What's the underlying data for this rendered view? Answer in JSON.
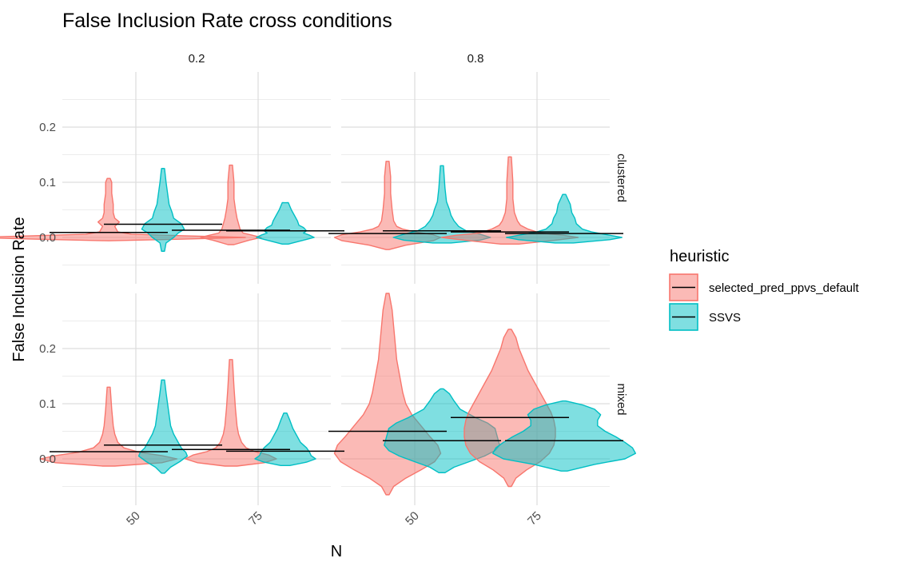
{
  "chart_data": {
    "type": "violin",
    "title": "False Inclusion Rate cross conditions",
    "xlabel": "N",
    "ylabel": "False Inclusion Rate",
    "x_categories": [
      "50",
      "75"
    ],
    "y_ticks": [
      "0.0",
      "0.1",
      "0.2"
    ],
    "ylim": [
      -0.07,
      0.31
    ],
    "grid": true,
    "legend": {
      "title": "heuristic",
      "position": "right",
      "entries": [
        {
          "label": "selected_pred_ppvs_default",
          "fill": "#F8766D"
        },
        {
          "label": "SSVS",
          "fill": "#00BFC4"
        }
      ]
    },
    "col_facets": [
      "0.2",
      "0.8"
    ],
    "row_facets": [
      "clustered",
      "mixed"
    ],
    "series": [
      {
        "name": "selected_pred_ppvs_default",
        "color": "#F8766D"
      },
      {
        "name": "SSVS",
        "color": "#00BFC4"
      }
    ],
    "violins": [
      {
        "row": "clustered",
        "col": "0.2",
        "N": "50",
        "series": "selected_pred_ppvs_default",
        "mean": 0.009,
        "profile": [
          [
            -0.006,
            0.003
          ],
          [
            -0.003,
            0.05
          ],
          [
            0.0,
            0.09
          ],
          [
            0.003,
            0.05
          ],
          [
            0.006,
            0.015
          ],
          [
            0.01,
            0.006
          ],
          [
            0.015,
            0.005
          ],
          [
            0.02,
            0.004
          ],
          [
            0.028,
            0.007
          ],
          [
            0.035,
            0.004
          ],
          [
            0.045,
            0.003
          ],
          [
            0.06,
            0.003
          ],
          [
            0.08,
            0.002
          ],
          [
            0.1,
            0.002
          ],
          [
            0.107,
            0.001
          ]
        ]
      },
      {
        "row": "clustered",
        "col": "0.2",
        "N": "50",
        "series": "SSVS",
        "mean": 0.024,
        "profile": [
          [
            -0.025,
            0.001
          ],
          [
            -0.01,
            0.002
          ],
          [
            0.0,
            0.007
          ],
          [
            0.008,
            0.01
          ],
          [
            0.015,
            0.014
          ],
          [
            0.025,
            0.012
          ],
          [
            0.035,
            0.007
          ],
          [
            0.045,
            0.006
          ],
          [
            0.06,
            0.004
          ],
          [
            0.08,
            0.003
          ],
          [
            0.1,
            0.002
          ],
          [
            0.125,
            0.001
          ]
        ]
      },
      {
        "row": "clustered",
        "col": "0.2",
        "N": "75",
        "series": "selected_pred_ppvs_default",
        "mean": 0.013,
        "profile": [
          [
            -0.013,
            0.002
          ],
          [
            -0.005,
            0.012
          ],
          [
            0.0,
            0.02
          ],
          [
            0.004,
            0.014
          ],
          [
            0.008,
            0.008
          ],
          [
            0.015,
            0.006
          ],
          [
            0.025,
            0.005
          ],
          [
            0.035,
            0.004
          ],
          [
            0.05,
            0.003
          ],
          [
            0.07,
            0.002
          ],
          [
            0.1,
            0.002
          ],
          [
            0.131,
            0.001
          ]
        ]
      },
      {
        "row": "clustered",
        "col": "0.2",
        "N": "75",
        "series": "SSVS",
        "mean": 0.012,
        "profile": [
          [
            -0.012,
            0.002
          ],
          [
            -0.005,
            0.012
          ],
          [
            0.0,
            0.019
          ],
          [
            0.004,
            0.016
          ],
          [
            0.008,
            0.012
          ],
          [
            0.012,
            0.014
          ],
          [
            0.018,
            0.012
          ],
          [
            0.022,
            0.009
          ],
          [
            0.03,
            0.008
          ],
          [
            0.04,
            0.006
          ],
          [
            0.05,
            0.004
          ],
          [
            0.063,
            0.002
          ]
        ]
      },
      {
        "row": "clustered",
        "col": "0.8",
        "N": "50",
        "series": "selected_pred_ppvs_default",
        "mean": 0.007,
        "profile": [
          [
            -0.022,
            0.001
          ],
          [
            -0.014,
            0.012
          ],
          [
            -0.006,
            0.03
          ],
          [
            0.0,
            0.035
          ],
          [
            0.005,
            0.03
          ],
          [
            0.01,
            0.018
          ],
          [
            0.015,
            0.01
          ],
          [
            0.02,
            0.006
          ],
          [
            0.03,
            0.004
          ],
          [
            0.05,
            0.003
          ],
          [
            0.08,
            0.002
          ],
          [
            0.11,
            0.002
          ],
          [
            0.138,
            0.001
          ]
        ]
      },
      {
        "row": "clustered",
        "col": "0.8",
        "N": "50",
        "series": "SSVS",
        "mean": 0.012,
        "profile": [
          [
            -0.01,
            0.006
          ],
          [
            -0.005,
            0.025
          ],
          [
            0.0,
            0.032
          ],
          [
            0.006,
            0.025
          ],
          [
            0.012,
            0.016
          ],
          [
            0.02,
            0.011
          ],
          [
            0.03,
            0.008
          ],
          [
            0.04,
            0.006
          ],
          [
            0.05,
            0.005
          ],
          [
            0.065,
            0.003
          ],
          [
            0.09,
            0.002
          ],
          [
            0.13,
            0.001
          ]
        ]
      },
      {
        "row": "clustered",
        "col": "0.8",
        "N": "75",
        "series": "selected_pred_ppvs_default",
        "mean": 0.01,
        "profile": [
          [
            -0.012,
            0.006
          ],
          [
            -0.005,
            0.03
          ],
          [
            0.0,
            0.045
          ],
          [
            0.004,
            0.035
          ],
          [
            0.008,
            0.02
          ],
          [
            0.015,
            0.012
          ],
          [
            0.022,
            0.007
          ],
          [
            0.03,
            0.005
          ],
          [
            0.045,
            0.003
          ],
          [
            0.07,
            0.002
          ],
          [
            0.1,
            0.002
          ],
          [
            0.146,
            0.001
          ]
        ]
      },
      {
        "row": "clustered",
        "col": "0.8",
        "N": "75",
        "series": "SSVS",
        "mean": 0.007,
        "profile": [
          [
            -0.01,
            0.006
          ],
          [
            -0.004,
            0.03
          ],
          [
            0.0,
            0.038
          ],
          [
            0.005,
            0.028
          ],
          [
            0.01,
            0.018
          ],
          [
            0.015,
            0.012
          ],
          [
            0.02,
            0.01
          ],
          [
            0.025,
            0.008
          ],
          [
            0.035,
            0.007
          ],
          [
            0.045,
            0.005
          ],
          [
            0.06,
            0.004
          ],
          [
            0.078,
            0.001
          ]
        ]
      },
      {
        "row": "mixed",
        "col": "0.2",
        "N": "50",
        "series": "selected_pred_ppvs_default",
        "mean": 0.013,
        "profile": [
          [
            -0.013,
            0.004
          ],
          [
            -0.007,
            0.035
          ],
          [
            0.0,
            0.045
          ],
          [
            0.006,
            0.035
          ],
          [
            0.012,
            0.02
          ],
          [
            0.02,
            0.01
          ],
          [
            0.03,
            0.006
          ],
          [
            0.045,
            0.004
          ],
          [
            0.06,
            0.003
          ],
          [
            0.09,
            0.002
          ],
          [
            0.13,
            0.001
          ]
        ]
      },
      {
        "row": "mixed",
        "col": "0.2",
        "N": "50",
        "series": "SSVS",
        "mean": 0.025,
        "profile": [
          [
            -0.026,
            0.001
          ],
          [
            -0.015,
            0.005
          ],
          [
            -0.005,
            0.011
          ],
          [
            0.005,
            0.016
          ],
          [
            0.012,
            0.015
          ],
          [
            0.02,
            0.012
          ],
          [
            0.03,
            0.01
          ],
          [
            0.045,
            0.007
          ],
          [
            0.06,
            0.005
          ],
          [
            0.08,
            0.004
          ],
          [
            0.1,
            0.003
          ],
          [
            0.12,
            0.002
          ],
          [
            0.143,
            0.001
          ]
        ]
      },
      {
        "row": "mixed",
        "col": "0.2",
        "N": "75",
        "series": "selected_pred_ppvs_default",
        "mean": 0.017,
        "profile": [
          [
            -0.013,
            0.004
          ],
          [
            -0.007,
            0.022
          ],
          [
            0.0,
            0.03
          ],
          [
            0.007,
            0.025
          ],
          [
            0.013,
            0.016
          ],
          [
            0.02,
            0.01
          ],
          [
            0.03,
            0.007
          ],
          [
            0.045,
            0.005
          ],
          [
            0.06,
            0.004
          ],
          [
            0.09,
            0.003
          ],
          [
            0.13,
            0.002
          ],
          [
            0.18,
            0.001
          ]
        ]
      },
      {
        "row": "mixed",
        "col": "0.2",
        "N": "75",
        "series": "SSVS",
        "mean": 0.014,
        "profile": [
          [
            -0.012,
            0.003
          ],
          [
            -0.006,
            0.014
          ],
          [
            0.0,
            0.02
          ],
          [
            0.006,
            0.017
          ],
          [
            0.012,
            0.016
          ],
          [
            0.02,
            0.014
          ],
          [
            0.03,
            0.01
          ],
          [
            0.04,
            0.008
          ],
          [
            0.055,
            0.005
          ],
          [
            0.07,
            0.003
          ],
          [
            0.083,
            0.001
          ]
        ]
      },
      {
        "row": "mixed",
        "col": "0.8",
        "N": "50",
        "series": "selected_pred_ppvs_default",
        "mean": 0.05,
        "profile": [
          [
            -0.065,
            0.001
          ],
          [
            -0.05,
            0.004
          ],
          [
            -0.035,
            0.012
          ],
          [
            -0.02,
            0.022
          ],
          [
            -0.005,
            0.031
          ],
          [
            0.01,
            0.035
          ],
          [
            0.025,
            0.033
          ],
          [
            0.04,
            0.028
          ],
          [
            0.06,
            0.022
          ],
          [
            0.08,
            0.016
          ],
          [
            0.1,
            0.012
          ],
          [
            0.12,
            0.01
          ],
          [
            0.15,
            0.008
          ],
          [
            0.18,
            0.006
          ],
          [
            0.21,
            0.005
          ],
          [
            0.24,
            0.004
          ],
          [
            0.27,
            0.003
          ],
          [
            0.3,
            0.001
          ]
        ]
      },
      {
        "row": "mixed",
        "col": "0.8",
        "N": "50",
        "series": "SSVS",
        "mean": 0.033,
        "profile": [
          [
            -0.025,
            0.002
          ],
          [
            -0.015,
            0.008
          ],
          [
            -0.005,
            0.018
          ],
          [
            0.005,
            0.028
          ],
          [
            0.015,
            0.035
          ],
          [
            0.025,
            0.038
          ],
          [
            0.035,
            0.037
          ],
          [
            0.045,
            0.036
          ],
          [
            0.055,
            0.035
          ],
          [
            0.065,
            0.03
          ],
          [
            0.075,
            0.022
          ],
          [
            0.09,
            0.012
          ],
          [
            0.105,
            0.008
          ],
          [
            0.118,
            0.005
          ],
          [
            0.127,
            0.001
          ]
        ]
      },
      {
        "row": "mixed",
        "col": "0.8",
        "N": "75",
        "series": "selected_pred_ppvs_default",
        "mean": 0.075,
        "profile": [
          [
            -0.05,
            0.001
          ],
          [
            -0.035,
            0.004
          ],
          [
            -0.02,
            0.011
          ],
          [
            -0.005,
            0.02
          ],
          [
            0.01,
            0.026
          ],
          [
            0.025,
            0.029
          ],
          [
            0.04,
            0.03
          ],
          [
            0.055,
            0.03
          ],
          [
            0.07,
            0.029
          ],
          [
            0.085,
            0.027
          ],
          [
            0.1,
            0.024
          ],
          [
            0.12,
            0.02
          ],
          [
            0.14,
            0.016
          ],
          [
            0.16,
            0.012
          ],
          [
            0.18,
            0.009
          ],
          [
            0.2,
            0.006
          ],
          [
            0.22,
            0.004
          ],
          [
            0.235,
            0.001
          ]
        ]
      },
      {
        "row": "mixed",
        "col": "0.8",
        "N": "75",
        "series": "SSVS",
        "mean": 0.033,
        "profile": [
          [
            -0.022,
            0.002
          ],
          [
            -0.01,
            0.02
          ],
          [
            0.0,
            0.04
          ],
          [
            0.01,
            0.047
          ],
          [
            0.02,
            0.045
          ],
          [
            0.03,
            0.04
          ],
          [
            0.04,
            0.034
          ],
          [
            0.05,
            0.027
          ],
          [
            0.06,
            0.022
          ],
          [
            0.07,
            0.022
          ],
          [
            0.08,
            0.024
          ],
          [
            0.09,
            0.02
          ],
          [
            0.098,
            0.012
          ],
          [
            0.105,
            0.001
          ]
        ]
      }
    ]
  }
}
